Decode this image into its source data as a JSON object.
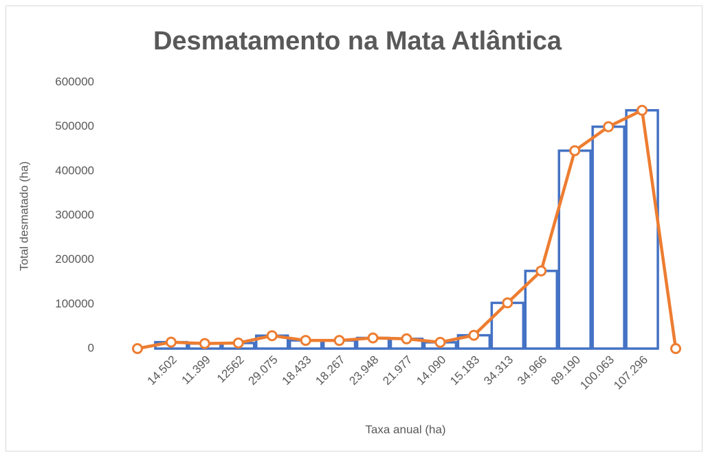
{
  "chart_data": {
    "type": "bar_line",
    "title": "Desmatamento na Mata Atlântica",
    "x_label": "Taxa anual (ha)",
    "y_label": "Total desmatado (ha)",
    "categories": [
      null,
      "14.502",
      "11.399",
      "12562",
      "29.075",
      "18.433",
      "18.267",
      "23.948",
      "21.977",
      "14.090",
      "15.183",
      "34.313",
      "34.966",
      "89.190",
      "100.063",
      "107.296",
      null
    ],
    "series": [
      {
        "type": "bar",
        "color": "#4472c4",
        "values": [
          null,
          14502,
          11399,
          12562,
          29075,
          18433,
          18267,
          23948,
          21977,
          14090,
          30000,
          103000,
          175000,
          446000,
          500000,
          537000,
          null
        ]
      },
      {
        "type": "line",
        "color": "#ed7d31",
        "values": [
          0,
          14502,
          11399,
          12562,
          29075,
          18433,
          18267,
          23948,
          21977,
          14090,
          30000,
          103000,
          175000,
          446000,
          500000,
          537000,
          0
        ]
      }
    ],
    "ylim": [
      0,
      600000
    ],
    "yticks": [
      0,
      100000,
      200000,
      300000,
      400000,
      500000,
      600000
    ]
  }
}
